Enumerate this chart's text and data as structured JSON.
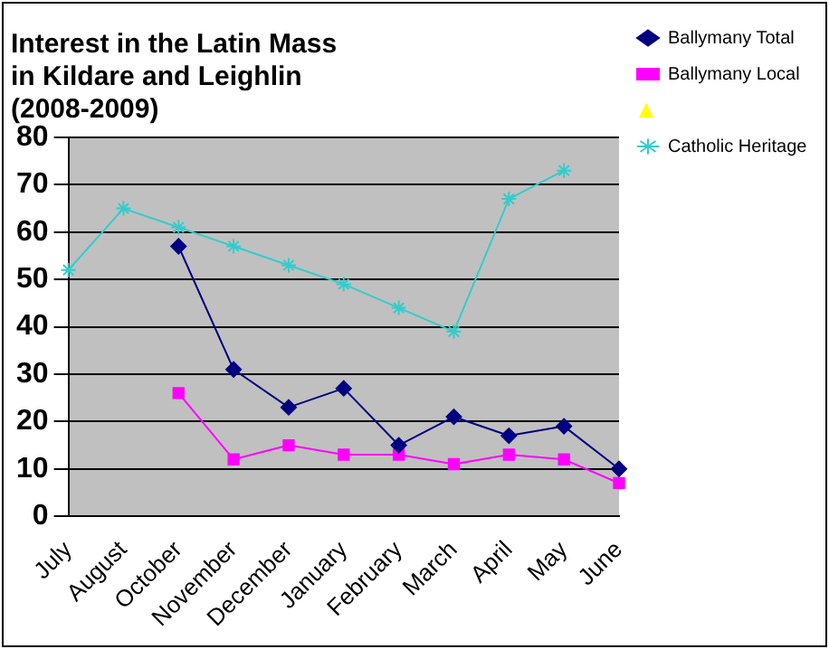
{
  "chart_data": {
    "type": "line",
    "title": "Interest in the Latin Mass\nin Kildare and Leighlin\n(2008-2009)",
    "categories": [
      "July",
      "August",
      "October",
      "November",
      "December",
      "January",
      "February",
      "March",
      "April",
      "May",
      "June"
    ],
    "series": [
      {
        "name": "Ballymany Total",
        "color": "#000080",
        "marker": "diamond",
        "values": [
          null,
          null,
          57,
          31,
          23,
          27,
          15,
          21,
          17,
          19,
          10
        ]
      },
      {
        "name": "Ballymany Local",
        "color": "#ff00ff",
        "marker": "square",
        "values": [
          null,
          null,
          26,
          12,
          15,
          13,
          13,
          11,
          13,
          12,
          7
        ]
      },
      {
        "color": "#ffff00",
        "marker": "triangle",
        "values": [
          null,
          null,
          null,
          null,
          null,
          null,
          null,
          null,
          null,
          null,
          null
        ]
      },
      {
        "name": "Catholic Heritage",
        "color": "#33cccc",
        "marker": "cross",
        "values": [
          52,
          65,
          61,
          57,
          53,
          49,
          44,
          39,
          67,
          73,
          null
        ]
      }
    ],
    "ylim": [
      0,
      80
    ],
    "yticks": [
      0,
      10,
      20,
      30,
      40,
      50,
      60,
      70,
      80
    ],
    "grid": "y",
    "legend": "top right",
    "line_style": "solid"
  }
}
